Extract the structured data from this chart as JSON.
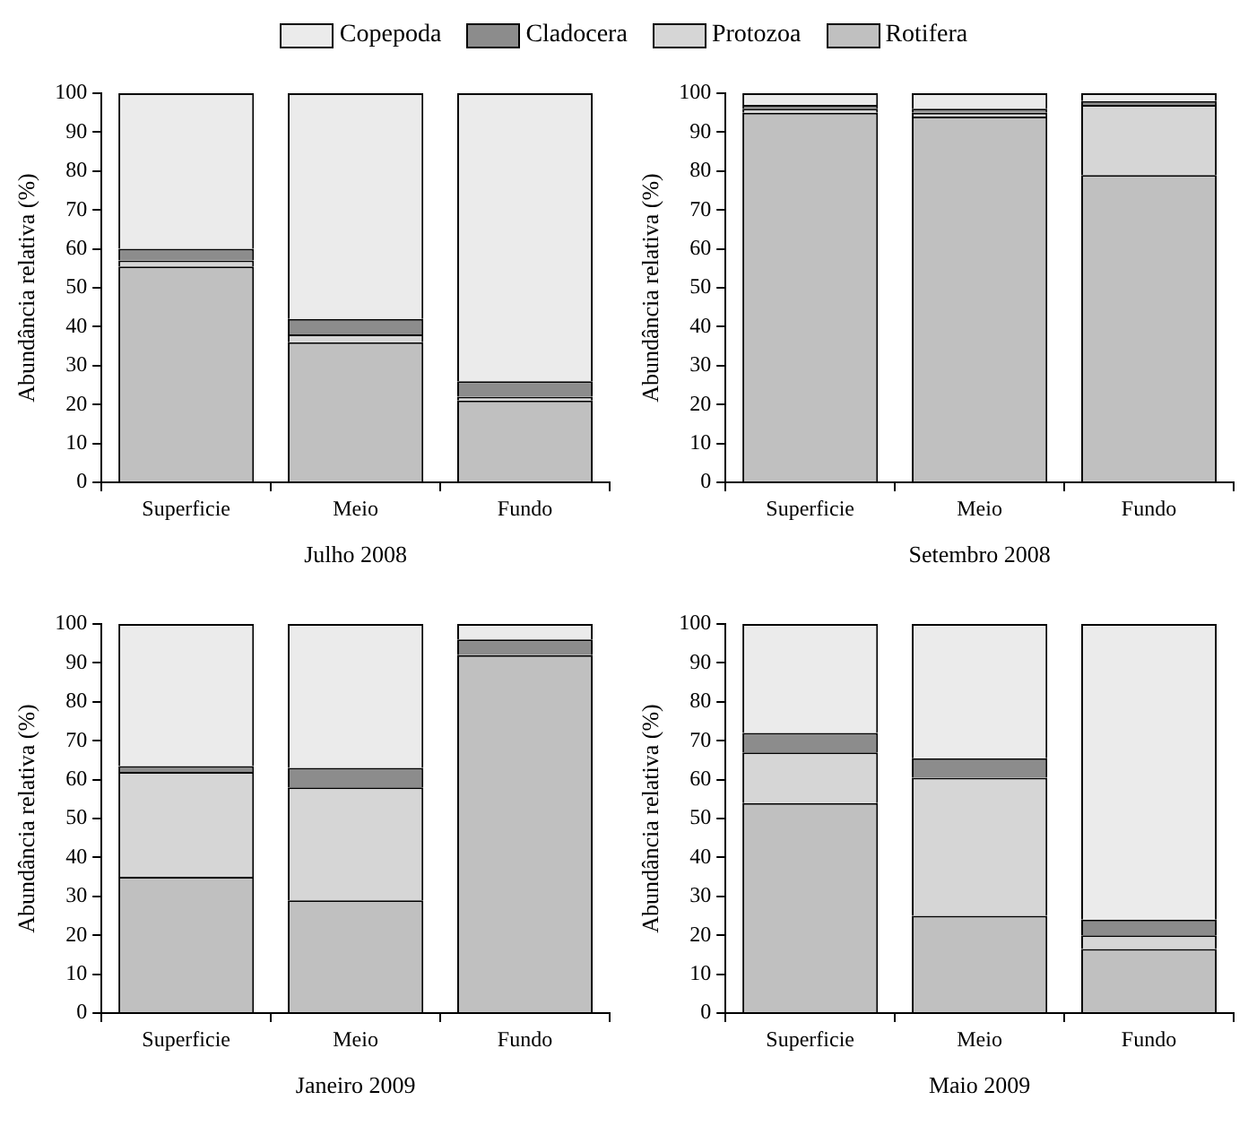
{
  "chart_data": [
    {
      "type": "bar",
      "stacked": true,
      "xlabel": "Julho 2008",
      "ylabel": "Abundância relativa (%)",
      "categories": [
        "Superficie",
        "Meio",
        "Fundo"
      ],
      "ylim": [
        0,
        100
      ],
      "yticks": [
        0,
        10,
        20,
        30,
        40,
        50,
        60,
        70,
        80,
        90,
        100
      ],
      "legend": "top",
      "series": [
        {
          "name": "Rotifera",
          "color": "#c0c0c0",
          "values": [
            55.5,
            36,
            21
          ]
        },
        {
          "name": "Protozoa",
          "color": "#d6d6d6",
          "values": [
            1.5,
            2,
            1
          ]
        },
        {
          "name": "Cladocera",
          "color": "#8c8c8c",
          "values": [
            3,
            4,
            4
          ]
        },
        {
          "name": "Copepoda",
          "color": "#ebebeb",
          "values": [
            40,
            58,
            74
          ]
        }
      ]
    },
    {
      "type": "bar",
      "stacked": true,
      "xlabel": "Setembro 2008",
      "ylabel": "Abundância relativa (%)",
      "categories": [
        "Superficie",
        "Meio",
        "Fundo"
      ],
      "ylim": [
        0,
        100
      ],
      "yticks": [
        0,
        10,
        20,
        30,
        40,
        50,
        60,
        70,
        80,
        90,
        100
      ],
      "series": [
        {
          "color": "#c0c0c0",
          "values": [
            95,
            94,
            79
          ]
        },
        {
          "color": "#d6d6d6",
          "values": [
            1,
            1,
            18
          ]
        },
        {
          "color": "#8c8c8c",
          "values": [
            1,
            1,
            1
          ]
        },
        {
          "color": "#ebebeb",
          "values": [
            3,
            4,
            2
          ]
        }
      ]
    },
    {
      "type": "bar",
      "stacked": true,
      "xlabel": "Janeiro 2009",
      "ylabel": "Abundância relativa (%)",
      "categories": [
        "Superficie",
        "Meio",
        "Fundo"
      ],
      "ylim": [
        0,
        100
      ],
      "yticks": [
        0,
        10,
        20,
        30,
        40,
        50,
        60,
        70,
        80,
        90,
        100
      ],
      "series": [
        {
          "color": "#c0c0c0",
          "values": [
            35,
            29,
            92
          ]
        },
        {
          "color": "#d6d6d6",
          "values": [
            27,
            29,
            0
          ]
        },
        {
          "color": "#8c8c8c",
          "values": [
            1.5,
            5,
            4
          ]
        },
        {
          "color": "#ebebeb",
          "values": [
            36.5,
            37,
            4
          ]
        }
      ]
    },
    {
      "type": "bar",
      "stacked": true,
      "xlabel": "Maio 2009",
      "ylabel": "Abundância relativa (%)",
      "categories": [
        "Superficie",
        "Meio",
        "Fundo"
      ],
      "ylim": [
        0,
        100
      ],
      "yticks": [
        0,
        10,
        20,
        30,
        40,
        50,
        60,
        70,
        80,
        90,
        100
      ],
      "series": [
        {
          "color": "#c0c0c0",
          "values": [
            54,
            25,
            16.5
          ]
        },
        {
          "color": "#d6d6d6",
          "values": [
            13,
            35.5,
            3.5
          ]
        },
        {
          "color": "#8c8c8c",
          "values": [
            5,
            5,
            4
          ]
        },
        {
          "color": "#ebebeb",
          "values": [
            28,
            34.5,
            76
          ]
        }
      ]
    }
  ]
}
